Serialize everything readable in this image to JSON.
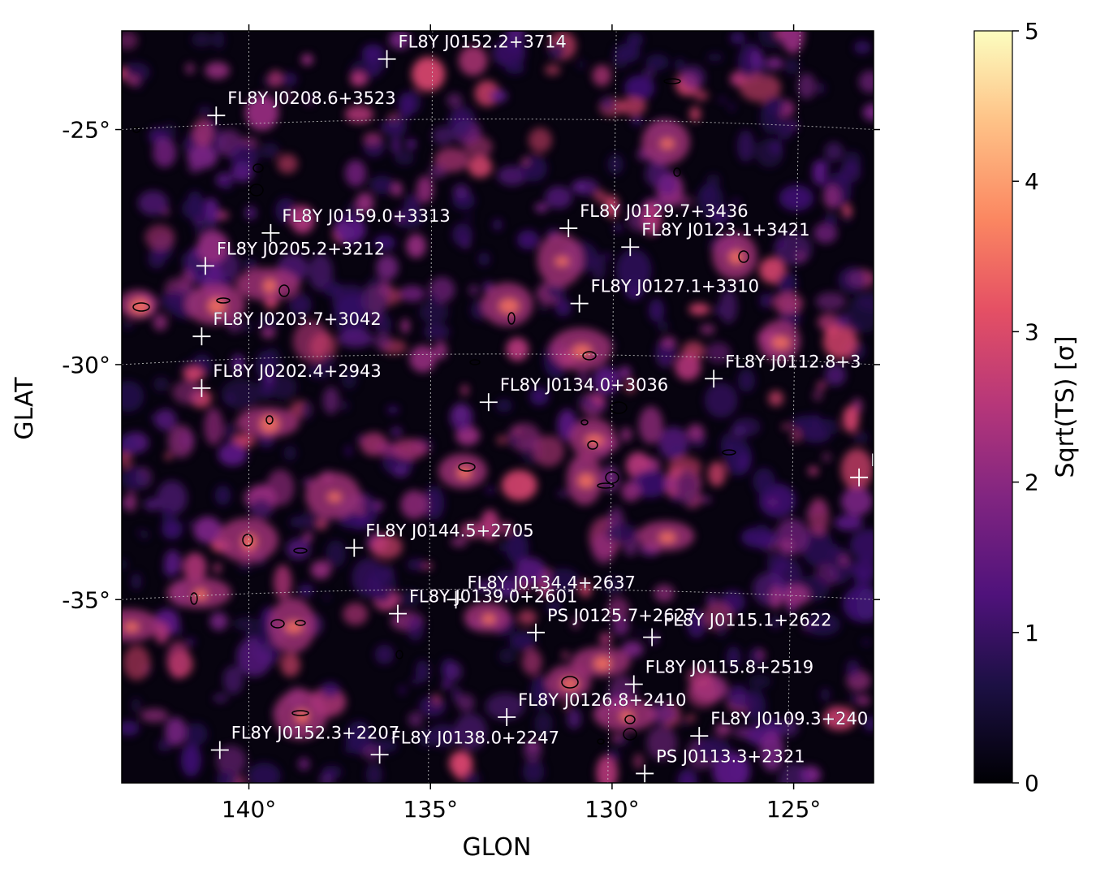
{
  "chart_data": {
    "type": "heatmap",
    "title": "",
    "xlabel": "GLON",
    "ylabel": "GLAT",
    "xlim": [
      143.5,
      122.8
    ],
    "ylim": [
      -38.9,
      -22.9
    ],
    "x_ticks": [
      {
        "value": 140,
        "label": "140°"
      },
      {
        "value": 135,
        "label": "135°"
      },
      {
        "value": 130,
        "label": "130°"
      },
      {
        "value": 125,
        "label": "125°"
      }
    ],
    "y_ticks": [
      {
        "value": -25,
        "label": "-25°"
      },
      {
        "value": -30,
        "label": "-30°"
      },
      {
        "value": -35,
        "label": "-35°"
      }
    ],
    "grid": true,
    "colormap": "magma",
    "colorbar": {
      "label": "Sqrt(TS) [σ]",
      "min": 0,
      "max": 5,
      "ticks": [
        "0",
        "1",
        "2",
        "3",
        "4",
        "5"
      ]
    },
    "sources": [
      {
        "name": "FL8Y J0152.2+3714",
        "glon": 136.2,
        "glat": -23.5
      },
      {
        "name": "FL8Y J0208.6+3523",
        "glon": 140.9,
        "glat": -24.7
      },
      {
        "name": "FL8Y J0159.0+3313",
        "glon": 139.4,
        "glat": -27.2
      },
      {
        "name": "FL8Y J0205.2+3212",
        "glon": 141.2,
        "glat": -27.9
      },
      {
        "name": "FL8Y J0203.7+3042",
        "glon": 141.3,
        "glat": -29.4
      },
      {
        "name": "FL8Y J0202.4+2943",
        "glon": 141.3,
        "glat": -30.5
      },
      {
        "name": "FL8Y J0129.7+3436",
        "glon": 131.2,
        "glat": -27.1
      },
      {
        "name": "FL8Y J0123.1+3421",
        "glon": 129.5,
        "glat": -27.5
      },
      {
        "name": "FL8Y J0127.1+3310",
        "glon": 130.9,
        "glat": -28.7
      },
      {
        "name": "FL8Y J0112.8+3",
        "glon": 127.2,
        "glat": -30.3
      },
      {
        "name": "FL8Y J0134.0+3036",
        "glon": 133.4,
        "glat": -30.8
      },
      {
        "name": "F",
        "glon": 123.2,
        "glat": -32.4
      },
      {
        "name": "FL8Y J0144.5+2705",
        "glon": 137.1,
        "glat": -33.9
      },
      {
        "name": "FL8Y J0134.4+2637",
        "glon": 134.3,
        "glat": -35.0
      },
      {
        "name": "FL8Y J0139.0+2601",
        "glon": 135.9,
        "glat": -35.3
      },
      {
        "name": "PS J0125.7+2627",
        "glon": 132.1,
        "glat": -35.7
      },
      {
        "name": "FL8Y J0115.1+2622",
        "glon": 128.9,
        "glat": -35.8
      },
      {
        "name": "FL8Y J0115.8+2519",
        "glon": 129.4,
        "glat": -36.8
      },
      {
        "name": "FL8Y J0126.8+2410",
        "glon": 132.9,
        "glat": -37.5
      },
      {
        "name": "FL8Y J0152.3+2207",
        "glon": 140.8,
        "glat": -38.2
      },
      {
        "name": "FL8Y J0138.0+2247",
        "glon": 136.4,
        "glat": -38.3
      },
      {
        "name": "FL8Y J0109.3+240",
        "glon": 127.6,
        "glat": -37.9
      },
      {
        "name": "PS J0113.3+2321",
        "glon": 129.1,
        "glat": -38.7
      }
    ]
  }
}
